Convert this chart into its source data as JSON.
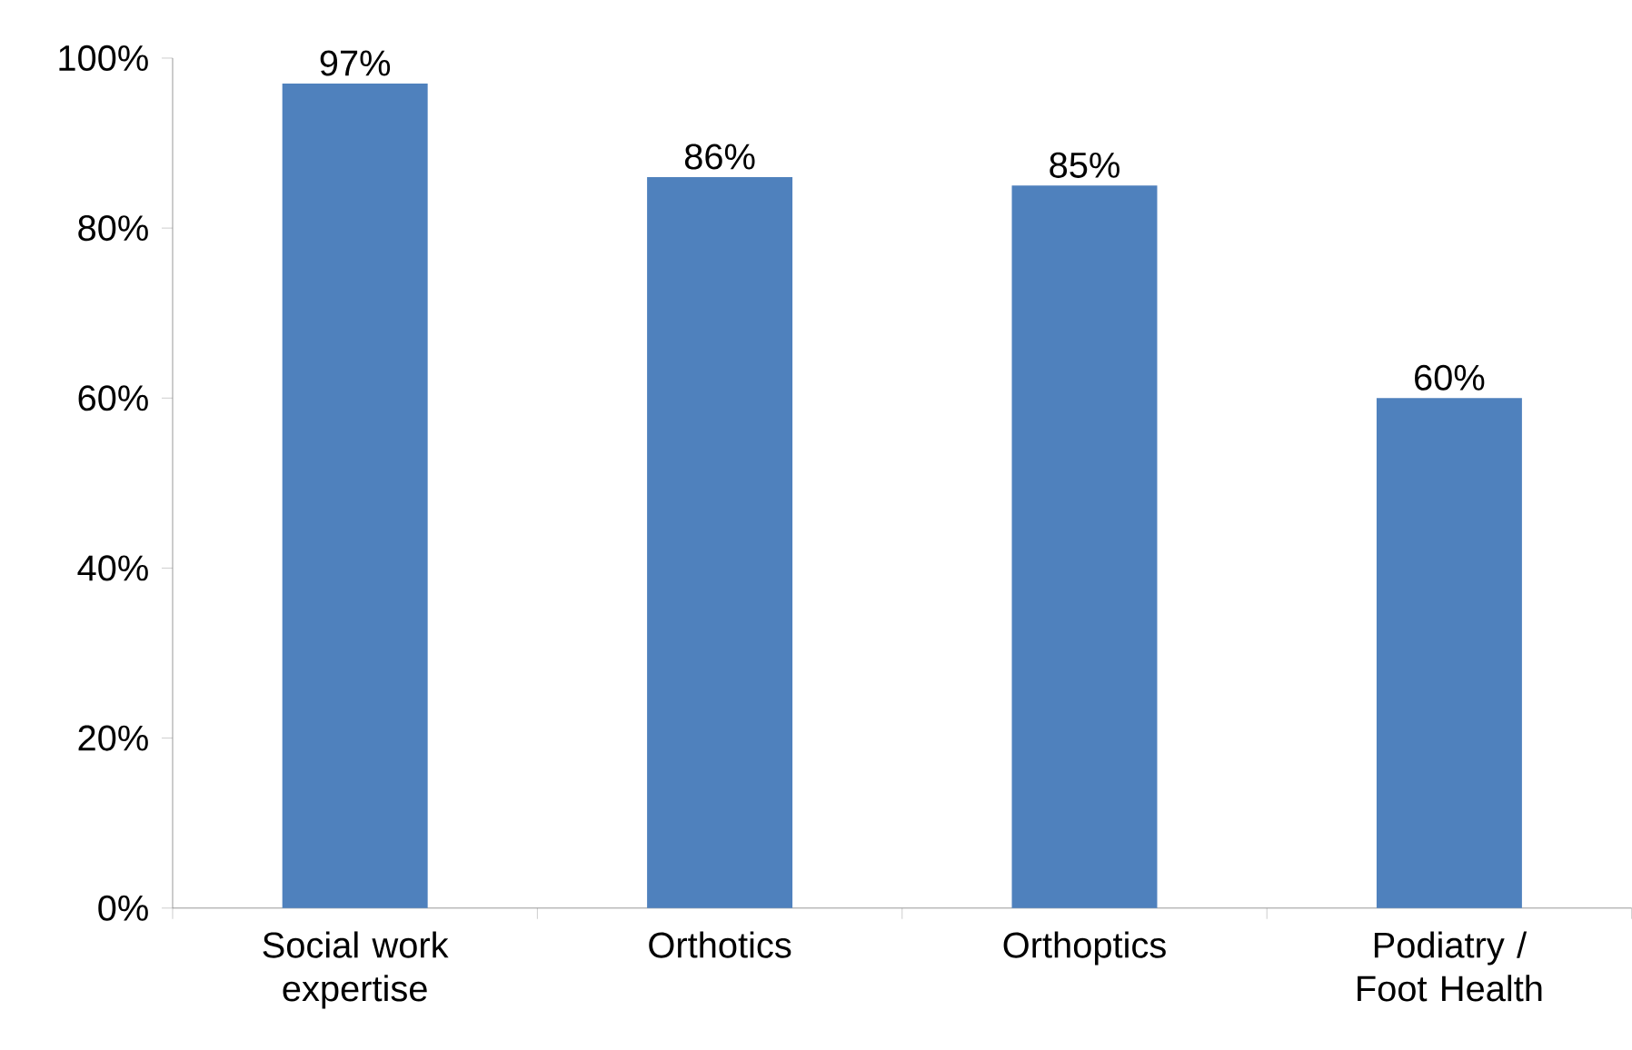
{
  "chart_data": {
    "type": "bar",
    "categories": [
      "Social work expertise",
      "Orthotics",
      "Orthoptics",
      "Podiatry / Foot Health"
    ],
    "values": [
      97,
      86,
      85,
      60
    ],
    "value_labels": [
      "97%",
      "86%",
      "85%",
      "60%"
    ],
    "color": "#4f81bd",
    "ylim": [
      0,
      100
    ],
    "yticks": [
      {
        "value": 0,
        "label": "0%"
      },
      {
        "value": 20,
        "label": "20%"
      },
      {
        "value": 40,
        "label": "40%"
      },
      {
        "value": 60,
        "label": "60%"
      },
      {
        "value": 80,
        "label": "80%"
      },
      {
        "value": 100,
        "label": "100%"
      }
    ]
  }
}
